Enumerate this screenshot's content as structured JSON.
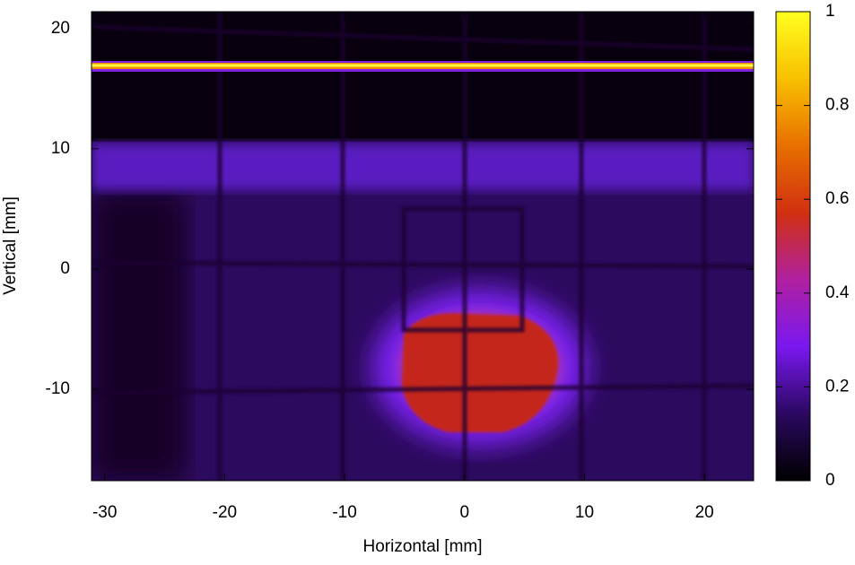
{
  "chart_data": {
    "type": "heatmap",
    "x_label": "Horizontal [mm]",
    "y_label": "Vertical [mm]",
    "xlim": [
      -31.1,
      24.1
    ],
    "xticks": [
      -30,
      -20,
      -10,
      0,
      10,
      20
    ],
    "ylim": [
      -17.6,
      21.4
    ],
    "yticks": [
      -10,
      0,
      10,
      20
    ],
    "cblim": [
      0,
      1
    ],
    "cbticks": [
      0,
      0.2,
      0.4,
      0.6,
      0.8,
      1
    ],
    "colormap": [
      "#000000",
      "#2a0860",
      "#7a18f0",
      "#b020a0",
      "#d03010",
      "#e87000",
      "#f8c000",
      "#ffff20"
    ]
  }
}
